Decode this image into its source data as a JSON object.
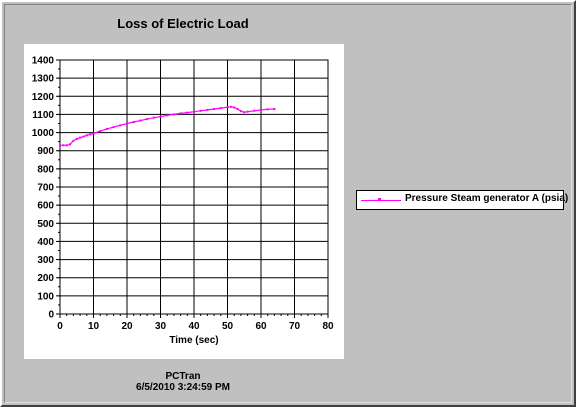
{
  "chart_data": {
    "type": "line",
    "title": "Loss of Electric Load",
    "xlabel": "Time (sec)",
    "ylabel": "",
    "xlim": [
      0,
      80
    ],
    "ylim": [
      0,
      1400
    ],
    "xticks": [
      "0",
      "10",
      "20",
      "30",
      "40",
      "50",
      "60",
      "70",
      "80"
    ],
    "yticks": [
      "0",
      "100",
      "200",
      "300",
      "400",
      "500",
      "600",
      "700",
      "800",
      "900",
      "1000",
      "1100",
      "1200",
      "1300",
      "1400"
    ],
    "grid": true,
    "legend_position": "right",
    "series": [
      {
        "name": "Pressure Steam generator A (psia)",
        "color": "#ff00ff",
        "x": [
          0,
          1,
          2,
          3,
          4,
          5,
          6,
          7,
          8,
          9,
          10,
          12,
          14,
          16,
          18,
          20,
          22,
          24,
          26,
          28,
          30,
          32,
          34,
          36,
          38,
          40,
          42,
          44,
          46,
          48,
          50,
          51,
          52,
          53,
          54,
          55,
          56,
          58,
          60,
          62,
          64
        ],
        "y": [
          930,
          930,
          930,
          935,
          955,
          965,
          972,
          978,
          985,
          990,
          995,
          1008,
          1020,
          1030,
          1040,
          1050,
          1058,
          1066,
          1074,
          1082,
          1088,
          1095,
          1100,
          1106,
          1110,
          1115,
          1120,
          1125,
          1130,
          1135,
          1140,
          1142,
          1138,
          1130,
          1118,
          1112,
          1115,
          1120,
          1125,
          1128,
          1130
        ]
      }
    ]
  },
  "footer": {
    "app": "PCTran",
    "timestamp": "6/5/2010 3:24:59 PM"
  }
}
